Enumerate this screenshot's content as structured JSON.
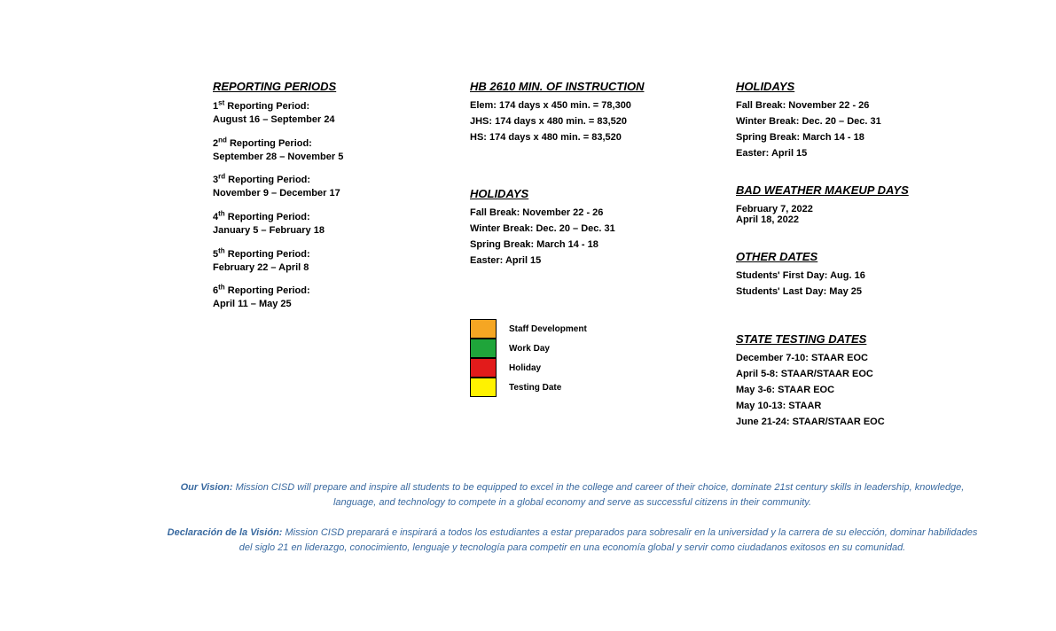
{
  "col1": {
    "heading": "REPORTING PERIODS",
    "periods": [
      {
        "ord": "1",
        "suffix": "st",
        "dates": "August 16 – September 24"
      },
      {
        "ord": "2",
        "suffix": "nd",
        "dates": "September 28 – November 5"
      },
      {
        "ord": "3",
        "suffix": "rd",
        "dates": "November 9 – December 17"
      },
      {
        "ord": "4",
        "suffix": "th",
        "dates": "January 5 – February 18"
      },
      {
        "ord": "5",
        "suffix": "th",
        "dates": "February 22 – April 8"
      },
      {
        "ord": "6",
        "suffix": "th",
        "dates": "April 11 – May 25"
      }
    ],
    "period_label": " Reporting Period:"
  },
  "col2": {
    "instruction": {
      "heading": "HB 2610 MIN. OF INSTRUCTION",
      "lines": [
        "Elem:  174 days x 450 min. = 78,300",
        "JHS:  174 days x 480 min. = 83,520",
        "HS:  174 days x 480 min. = 83,520"
      ]
    },
    "holidays": {
      "heading": "HOLIDAYS",
      "lines": [
        "Fall Break: November 22 - 26",
        "Winter Break: Dec. 20 – Dec. 31",
        "Spring Break: March 14 - 18",
        "Easter: April 15"
      ]
    }
  },
  "col3": {
    "holidays": {
      "heading": "HOLIDAYS",
      "lines": [
        "Fall Break: November 22 - 26",
        "Winter Break: Dec. 20 – Dec. 31",
        "Spring Break: March 14 - 18",
        "Easter: April 15"
      ]
    },
    "makeup": {
      "heading": "BAD WEATHER MAKEUP DAYS",
      "lines": [
        "February 7, 2022",
        "April 18, 2022"
      ]
    },
    "other": {
      "heading": "OTHER DATES",
      "lines": [
        "Students' First Day: Aug. 16",
        "Students' Last Day:  May 25"
      ]
    },
    "testing": {
      "heading": "STATE TESTING DATES",
      "lines": [
        "December 7-10:  STAAR EOC",
        "April 5-8:   STAAR/STAAR EOC",
        "May 3-6:  STAAR EOC",
        "May 10-13:  STAAR",
        "June 21-24:  STAAR/STAAR EOC"
      ]
    }
  },
  "legend": {
    "items": [
      {
        "color": "#f5a623",
        "label": "Staff Development"
      },
      {
        "color": "#1fa53a",
        "label": "Work Day"
      },
      {
        "color": "#e21b1b",
        "label": "Holiday"
      },
      {
        "color": "#fff200",
        "label": "Testing Date"
      }
    ]
  },
  "footer": {
    "vision_lead": "Our Vision: ",
    "vision_text": "Mission CISD will prepare and inspire all students to be equipped to excel in the college and career of their choice, dominate 21st century skills in leadership, knowledge, language, and technology to compete in a global economy and serve as successful citizens in their community.",
    "declaracion_lead": "Declaración de la Visión: ",
    "declaracion_text": "Mission CISD preparará e inspirará a todos los estudiantes a estar preparados para sobresalir en la universidad y la carrera de su elección, dominar habilidades del siglo 21 en liderazgo, conocimiento, lenguaje y tecnología para competir en una economía global y servir como ciudadanos exitosos en su comunidad.",
    "color": "#3a6aa0"
  }
}
